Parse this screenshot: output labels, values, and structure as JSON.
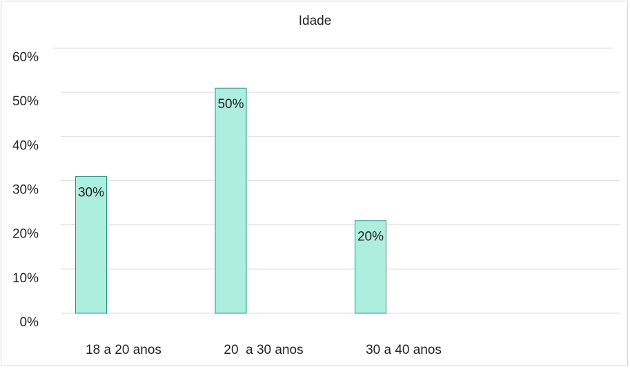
{
  "chart_data": {
    "type": "bar",
    "title": "Idade",
    "categories": [
      "18 a 20 anos",
      "20  a 30 anos",
      "30 a 40 anos",
      ""
    ],
    "values": [
      0.3,
      0.5,
      0.2,
      null
    ],
    "data_labels": [
      "30%",
      "50%",
      "20%",
      ""
    ],
    "ylim": [
      0,
      0.6
    ],
    "yticks": [
      "0%",
      "10%",
      "20%",
      "30%",
      "40%",
      "50%",
      "60%"
    ],
    "ytick_values": [
      0,
      0.1,
      0.2,
      0.3,
      0.4,
      0.5,
      0.6
    ],
    "grid": true,
    "legend": "none",
    "bar_fill": "#aeeedf",
    "bar_stroke": "#1a9e8e",
    "grid_color": "#d9d9d9"
  }
}
